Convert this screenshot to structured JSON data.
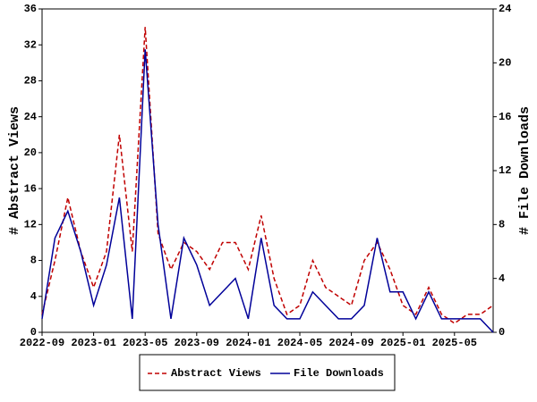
{
  "chart_data": {
    "type": "line",
    "ylabel": "# Abstract Views",
    "y2label": "# File Downloads",
    "categories": [
      "2022-09",
      null,
      null,
      null,
      "2023-01",
      null,
      null,
      null,
      "2023-05",
      null,
      null,
      null,
      "2023-09",
      null,
      null,
      null,
      "2024-01",
      null,
      null,
      null,
      "2024-05",
      null,
      null,
      null,
      "2024-09",
      null,
      null,
      null,
      "2025-01",
      null,
      null,
      null,
      "2025-05",
      null,
      null,
      null
    ],
    "series": [
      {
        "name": "Abstract Views",
        "color": "#c00000",
        "linestyle": "dashed",
        "axis": "y",
        "values": [
          2,
          8,
          15,
          9,
          5,
          9,
          22,
          9,
          34,
          11,
          7,
          10,
          9,
          7,
          10,
          10,
          7,
          13,
          6,
          2,
          3,
          8,
          5,
          4,
          3,
          8,
          10,
          7,
          3,
          2,
          5,
          2,
          1,
          2,
          2,
          3
        ]
      },
      {
        "name": "File Downloads",
        "color": "#000099",
        "linestyle": "solid",
        "axis": "y2",
        "values": [
          1,
          7,
          9,
          6,
          2,
          5,
          10,
          1,
          21,
          8,
          1,
          7,
          5,
          2,
          3,
          4,
          1,
          7,
          2,
          1,
          1,
          3,
          2,
          1,
          1,
          2,
          7,
          3,
          3,
          1,
          3,
          1,
          1,
          1,
          1,
          0
        ]
      }
    ],
    "ylim": [
      0,
      36
    ],
    "yticks": [
      0,
      4,
      8,
      12,
      16,
      20,
      24,
      28,
      32,
      36
    ],
    "y2lim": [
      0,
      24
    ],
    "y2ticks": [
      0,
      4,
      8,
      12,
      16,
      20,
      24
    ],
    "legend": "bottom"
  }
}
